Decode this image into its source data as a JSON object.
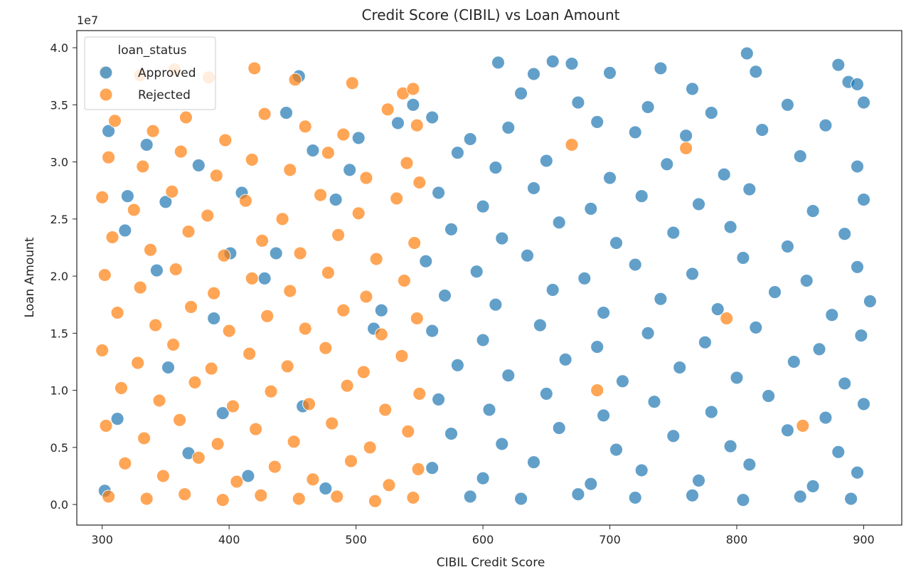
{
  "chart_data": {
    "type": "scatter",
    "title": "Credit Score (CIBIL) vs Loan Amount",
    "xlabel": "CIBIL Credit Score",
    "ylabel": "Loan Amount",
    "y_offset_text": "1e7",
    "xlim": [
      280,
      930
    ],
    "ylim": [
      -1800000,
      41500000
    ],
    "x_ticks": [
      300,
      400,
      500,
      600,
      700,
      800,
      900
    ],
    "y_ticks": [
      0,
      5000000,
      10000000,
      15000000,
      20000000,
      25000000,
      30000000,
      35000000,
      40000000
    ],
    "y_tick_labels": [
      "0.0",
      "0.5",
      "1.0",
      "1.5",
      "2.0",
      "2.5",
      "3.0",
      "3.5",
      "4.0"
    ],
    "grid": false,
    "legend": {
      "title": "loan_status",
      "placement": "top-left",
      "entries": [
        {
          "name": "Approved",
          "color": "#1f77b4"
        },
        {
          "name": "Rejected",
          "color": "#ff7f0e"
        }
      ]
    },
    "series": [
      {
        "name": "Approved",
        "color": "#1f77b4",
        "points": [
          [
            612,
            38700000
          ],
          [
            640,
            37700000
          ],
          [
            655,
            38800000
          ],
          [
            670,
            38600000
          ],
          [
            700,
            37800000
          ],
          [
            740,
            38200000
          ],
          [
            808,
            39500000
          ],
          [
            815,
            37900000
          ],
          [
            880,
            38500000
          ],
          [
            888,
            37000000
          ],
          [
            895,
            36800000
          ],
          [
            765,
            36400000
          ],
          [
            630,
            36000000
          ],
          [
            675,
            35200000
          ],
          [
            730,
            34800000
          ],
          [
            780,
            34300000
          ],
          [
            840,
            35000000
          ],
          [
            900,
            35200000
          ],
          [
            560,
            33900000
          ],
          [
            590,
            32000000
          ],
          [
            620,
            33000000
          ],
          [
            690,
            33500000
          ],
          [
            720,
            32600000
          ],
          [
            760,
            32300000
          ],
          [
            820,
            32800000
          ],
          [
            870,
            33200000
          ],
          [
            580,
            30800000
          ],
          [
            610,
            29500000
          ],
          [
            650,
            30100000
          ],
          [
            700,
            28600000
          ],
          [
            745,
            29800000
          ],
          [
            790,
            28900000
          ],
          [
            850,
            30500000
          ],
          [
            895,
            29600000
          ],
          [
            565,
            27300000
          ],
          [
            600,
            26100000
          ],
          [
            640,
            27700000
          ],
          [
            685,
            25900000
          ],
          [
            725,
            27000000
          ],
          [
            770,
            26300000
          ],
          [
            810,
            27600000
          ],
          [
            860,
            25700000
          ],
          [
            900,
            26700000
          ],
          [
            575,
            24100000
          ],
          [
            615,
            23300000
          ],
          [
            660,
            24700000
          ],
          [
            705,
            22900000
          ],
          [
            750,
            23800000
          ],
          [
            795,
            24300000
          ],
          [
            840,
            22600000
          ],
          [
            885,
            23700000
          ],
          [
            555,
            21300000
          ],
          [
            595,
            20400000
          ],
          [
            635,
            21800000
          ],
          [
            680,
            19800000
          ],
          [
            720,
            21000000
          ],
          [
            765,
            20200000
          ],
          [
            805,
            21600000
          ],
          [
            855,
            19600000
          ],
          [
            895,
            20800000
          ],
          [
            570,
            18300000
          ],
          [
            610,
            17500000
          ],
          [
            655,
            18800000
          ],
          [
            695,
            16800000
          ],
          [
            740,
            18000000
          ],
          [
            785,
            17100000
          ],
          [
            830,
            18600000
          ],
          [
            875,
            16600000
          ],
          [
            905,
            17800000
          ],
          [
            560,
            15200000
          ],
          [
            600,
            14400000
          ],
          [
            645,
            15700000
          ],
          [
            690,
            13800000
          ],
          [
            730,
            15000000
          ],
          [
            775,
            14200000
          ],
          [
            815,
            15500000
          ],
          [
            865,
            13600000
          ],
          [
            898,
            14800000
          ],
          [
            580,
            12200000
          ],
          [
            620,
            11300000
          ],
          [
            665,
            12700000
          ],
          [
            710,
            10800000
          ],
          [
            755,
            12000000
          ],
          [
            800,
            11100000
          ],
          [
            845,
            12500000
          ],
          [
            885,
            10600000
          ],
          [
            565,
            9200000
          ],
          [
            605,
            8300000
          ],
          [
            650,
            9700000
          ],
          [
            695,
            7800000
          ],
          [
            735,
            9000000
          ],
          [
            780,
            8100000
          ],
          [
            825,
            9500000
          ],
          [
            870,
            7600000
          ],
          [
            900,
            8800000
          ],
          [
            575,
            6200000
          ],
          [
            615,
            5300000
          ],
          [
            660,
            6700000
          ],
          [
            705,
            4800000
          ],
          [
            750,
            6000000
          ],
          [
            795,
            5100000
          ],
          [
            840,
            6500000
          ],
          [
            880,
            4600000
          ],
          [
            560,
            3200000
          ],
          [
            600,
            2300000
          ],
          [
            640,
            3700000
          ],
          [
            685,
            1800000
          ],
          [
            725,
            3000000
          ],
          [
            770,
            2100000
          ],
          [
            810,
            3500000
          ],
          [
            860,
            1600000
          ],
          [
            895,
            2800000
          ],
          [
            590,
            700000
          ],
          [
            630,
            500000
          ],
          [
            675,
            900000
          ],
          [
            720,
            600000
          ],
          [
            765,
            800000
          ],
          [
            805,
            400000
          ],
          [
            850,
            700000
          ],
          [
            890,
            500000
          ],
          [
            318,
            24000000
          ],
          [
            335,
            31500000
          ],
          [
            352,
            12000000
          ],
          [
            376,
            29700000
          ],
          [
            395,
            8000000
          ],
          [
            410,
            27300000
          ],
          [
            428,
            19800000
          ],
          [
            445,
            34300000
          ],
          [
            466,
            31000000
          ],
          [
            484,
            26700000
          ],
          [
            502,
            32100000
          ],
          [
            520,
            17000000
          ],
          [
            305,
            32700000
          ],
          [
            312,
            7500000
          ],
          [
            343,
            20500000
          ],
          [
            368,
            4500000
          ],
          [
            388,
            16300000
          ],
          [
            415,
            2500000
          ],
          [
            437,
            22000000
          ],
          [
            458,
            8600000
          ],
          [
            476,
            1400000
          ],
          [
            495,
            29300000
          ],
          [
            514,
            15400000
          ],
          [
            533,
            33400000
          ],
          [
            302,
            1200000
          ],
          [
            320,
            27000000
          ],
          [
            350,
            26500000
          ],
          [
            401,
            22000000
          ],
          [
            455,
            37500000
          ],
          [
            545,
            35000000
          ]
        ]
      },
      {
        "name": "Rejected",
        "color": "#ff7f0e",
        "points": [
          [
            302,
            37900000
          ],
          [
            330,
            37600000
          ],
          [
            357,
            38100000
          ],
          [
            384,
            37400000
          ],
          [
            420,
            38200000
          ],
          [
            452,
            37200000
          ],
          [
            497,
            36900000
          ],
          [
            537,
            36000000
          ],
          [
            545,
            36400000
          ],
          [
            310,
            33600000
          ],
          [
            340,
            32700000
          ],
          [
            366,
            33900000
          ],
          [
            397,
            31900000
          ],
          [
            428,
            34200000
          ],
          [
            460,
            33100000
          ],
          [
            490,
            32400000
          ],
          [
            525,
            34600000
          ],
          [
            548,
            33200000
          ],
          [
            305,
            30400000
          ],
          [
            332,
            29600000
          ],
          [
            362,
            30900000
          ],
          [
            390,
            28800000
          ],
          [
            418,
            30200000
          ],
          [
            448,
            29300000
          ],
          [
            478,
            30800000
          ],
          [
            508,
            28600000
          ],
          [
            540,
            29900000
          ],
          [
            300,
            26900000
          ],
          [
            325,
            25800000
          ],
          [
            355,
            27400000
          ],
          [
            383,
            25300000
          ],
          [
            413,
            26600000
          ],
          [
            442,
            25000000
          ],
          [
            472,
            27100000
          ],
          [
            502,
            25500000
          ],
          [
            532,
            26800000
          ],
          [
            550,
            28200000
          ],
          [
            308,
            23400000
          ],
          [
            338,
            22300000
          ],
          [
            368,
            23900000
          ],
          [
            396,
            21800000
          ],
          [
            426,
            23100000
          ],
          [
            456,
            22000000
          ],
          [
            486,
            23600000
          ],
          [
            516,
            21500000
          ],
          [
            546,
            22900000
          ],
          [
            302,
            20100000
          ],
          [
            330,
            19000000
          ],
          [
            358,
            20600000
          ],
          [
            388,
            18500000
          ],
          [
            418,
            19800000
          ],
          [
            448,
            18700000
          ],
          [
            478,
            20300000
          ],
          [
            508,
            18200000
          ],
          [
            538,
            19600000
          ],
          [
            312,
            16800000
          ],
          [
            342,
            15700000
          ],
          [
            370,
            17300000
          ],
          [
            400,
            15200000
          ],
          [
            430,
            16500000
          ],
          [
            460,
            15400000
          ],
          [
            490,
            17000000
          ],
          [
            520,
            14900000
          ],
          [
            548,
            16300000
          ],
          [
            300,
            13500000
          ],
          [
            328,
            12400000
          ],
          [
            356,
            14000000
          ],
          [
            386,
            11900000
          ],
          [
            416,
            13200000
          ],
          [
            446,
            12100000
          ],
          [
            476,
            13700000
          ],
          [
            506,
            11600000
          ],
          [
            536,
            13000000
          ],
          [
            315,
            10200000
          ],
          [
            345,
            9100000
          ],
          [
            373,
            10700000
          ],
          [
            403,
            8600000
          ],
          [
            433,
            9900000
          ],
          [
            463,
            8800000
          ],
          [
            493,
            10400000
          ],
          [
            523,
            8300000
          ],
          [
            550,
            9700000
          ],
          [
            303,
            6900000
          ],
          [
            333,
            5800000
          ],
          [
            361,
            7400000
          ],
          [
            391,
            5300000
          ],
          [
            421,
            6600000
          ],
          [
            451,
            5500000
          ],
          [
            481,
            7100000
          ],
          [
            511,
            5000000
          ],
          [
            541,
            6400000
          ],
          [
            318,
            3600000
          ],
          [
            348,
            2500000
          ],
          [
            376,
            4100000
          ],
          [
            406,
            2000000
          ],
          [
            436,
            3300000
          ],
          [
            466,
            2200000
          ],
          [
            496,
            3800000
          ],
          [
            526,
            1700000
          ],
          [
            549,
            3100000
          ],
          [
            305,
            700000
          ],
          [
            335,
            500000
          ],
          [
            365,
            900000
          ],
          [
            395,
            400000
          ],
          [
            425,
            800000
          ],
          [
            455,
            500000
          ],
          [
            485,
            700000
          ],
          [
            515,
            300000
          ],
          [
            545,
            600000
          ],
          [
            760,
            31200000
          ],
          [
            670,
            31500000
          ],
          [
            792,
            16300000
          ],
          [
            852,
            6900000
          ],
          [
            690,
            10000000
          ]
        ]
      }
    ]
  }
}
